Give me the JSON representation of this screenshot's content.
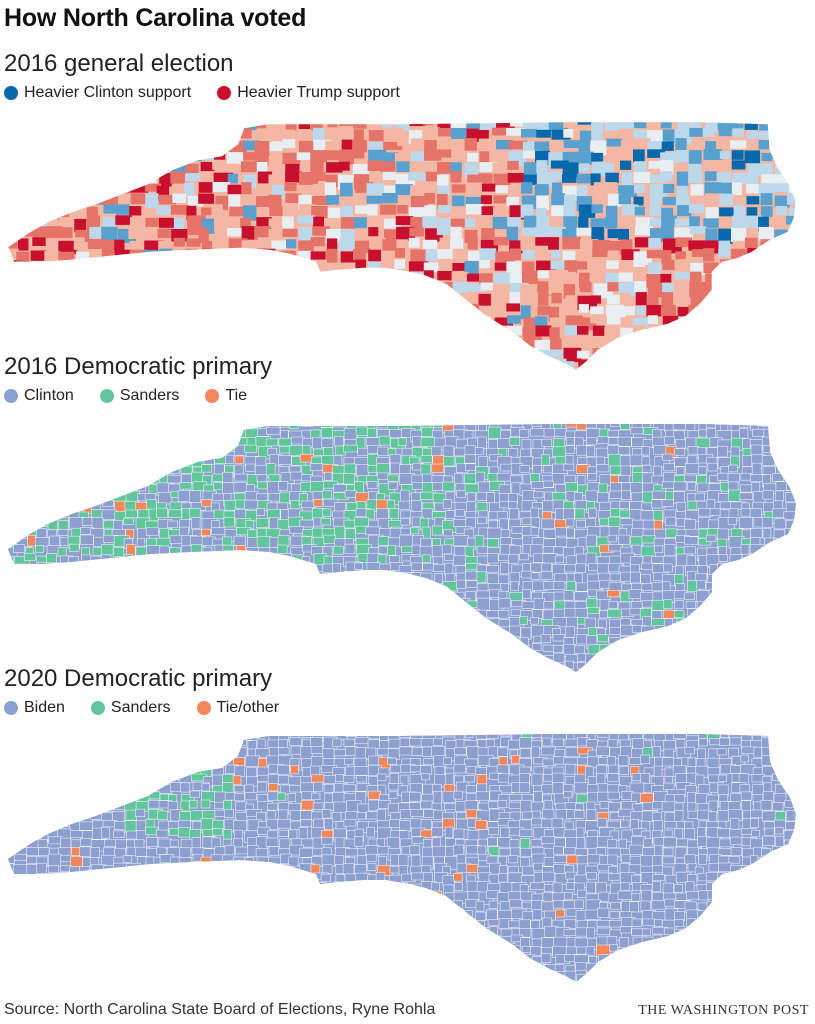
{
  "title": "How North Carolina voted",
  "colors": {
    "clinton_dark": "#0868ac",
    "clinton_mid": "#5aa0cf",
    "clinton_light": "#bcd8ea",
    "neutral": "#e8eef2",
    "trump_light": "#f4b7a3",
    "trump_mid": "#e57368",
    "trump_dark": "#c8102e",
    "primary_clinton": "#8c9fcf",
    "primary_sanders": "#63c59d",
    "primary_tie": "#f4875a"
  },
  "maps": [
    {
      "title": "2016 general election",
      "legend": [
        {
          "label": "Heavier Clinton support",
          "color": "#0868ac"
        },
        {
          "label": "Heavier Trump support",
          "color": "#c8102e"
        }
      ]
    },
    {
      "title": "2016 Democratic primary",
      "legend": [
        {
          "label": "Clinton",
          "color": "#8c9fcf"
        },
        {
          "label": "Sanders",
          "color": "#63c59d"
        },
        {
          "label": "Tie",
          "color": "#f4875a"
        }
      ]
    },
    {
      "title": "2020 Democratic primary",
      "legend": [
        {
          "label": "Biden",
          "color": "#8c9fcf"
        },
        {
          "label": "Sanders",
          "color": "#63c59d"
        },
        {
          "label": "Tie/other",
          "color": "#f4875a"
        }
      ]
    }
  ],
  "footer": {
    "source": "Source: North Carolina State Board of Elections, Ryne Rohla",
    "credit": "THE WASHINGTON POST"
  }
}
